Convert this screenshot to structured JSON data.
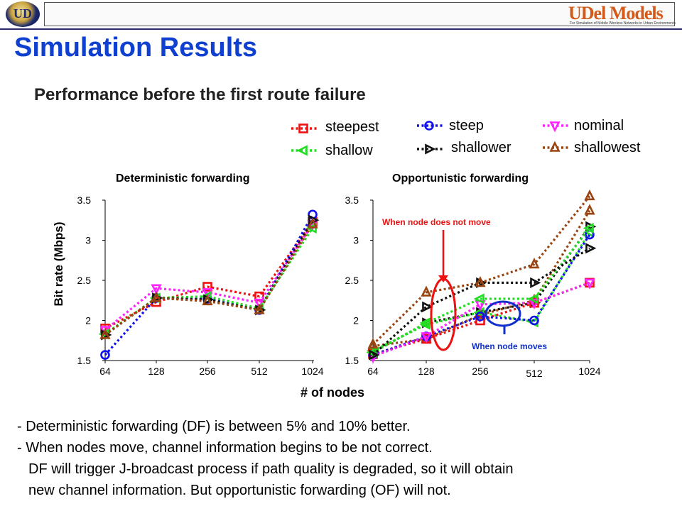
{
  "header": {
    "left_logo_text": "UD",
    "right_logo_text": "UDel Models",
    "right_logo_tagline": "For Simulation of Mobile Wireless Networks in Urban Environments"
  },
  "title": "Simulation Results",
  "subtitle": "Performance before the first route failure",
  "legend": [
    {
      "label": "steepest",
      "color": "#ee1111",
      "marker": "square"
    },
    {
      "label": "steep",
      "color": "#1010ee",
      "marker": "circle"
    },
    {
      "label": "nominal",
      "color": "#ff22ff",
      "marker": "triangle-down"
    },
    {
      "label": "shallow",
      "color": "#22dd22",
      "marker": "triangle-left"
    },
    {
      "label": "shallower",
      "color": "#111111",
      "marker": "triangle-right"
    },
    {
      "label": "shallowest",
      "color": "#994411",
      "marker": "triangle-up"
    }
  ],
  "axis": {
    "ylabel": "Bit rate (Mbps)",
    "xlabel": "# of nodes"
  },
  "chart_data": [
    {
      "type": "line",
      "title": "Deterministic forwarding",
      "categories": [
        "64",
        "128",
        "256",
        "512",
        "1024"
      ],
      "ylim": [
        1.5,
        3.5
      ],
      "yticks": [
        "1.5",
        "2",
        "2.5",
        "3",
        "3.5"
      ],
      "series": [
        {
          "name": "steepest",
          "values": [
            1.9,
            2.23,
            2.42,
            2.3,
            3.23
          ]
        },
        {
          "name": "steep",
          "values": [
            1.57,
            2.28,
            2.27,
            2.13,
            3.32
          ]
        },
        {
          "name": "nominal",
          "values": [
            1.88,
            2.4,
            2.35,
            2.22,
            3.2
          ]
        },
        {
          "name": "shallow",
          "values": [
            1.83,
            2.28,
            2.3,
            2.15,
            3.15
          ]
        },
        {
          "name": "shallower",
          "values": [
            1.82,
            2.28,
            2.26,
            2.13,
            3.25
          ]
        },
        {
          "name": "shallowest",
          "values": [
            1.82,
            2.28,
            2.24,
            2.13,
            3.2
          ]
        }
      ]
    },
    {
      "type": "line",
      "title": "Opportunistic forwarding",
      "categories": [
        "64",
        "128",
        "256",
        "512",
        "1024"
      ],
      "ylim": [
        1.5,
        3.5
      ],
      "yticks": [
        "1.5",
        "2",
        "2.5",
        "3",
        "3.5"
      ],
      "series": [
        {
          "name": "steepest",
          "values": [
            1.58,
            1.77,
            2.0,
            2.22,
            2.47
          ]
        },
        {
          "name": "steep",
          "values": [
            1.57,
            1.8,
            2.05,
            2.0,
            3.07
          ]
        },
        {
          "name": "nominal",
          "values": [
            1.55,
            1.8,
            2.2,
            2.22,
            2.47
          ]
        },
        {
          "name": "shallow",
          "values": [
            1.6,
            1.97,
            2.27,
            2.27,
            3.15
          ]
        },
        {
          "name": "shallower",
          "values": [
            1.57,
            2.17,
            2.47,
            2.47,
            2.9
          ]
        },
        {
          "name": "shallowest",
          "values": [
            1.7,
            2.35,
            2.47,
            2.7,
            3.55
          ]
        }
      ],
      "extra_series": [
        {
          "name": "shallower",
          "values": [
            1.6,
            1.97,
            2.1,
            2.22,
            3.17
          ]
        },
        {
          "name": "shallowest",
          "values": [
            1.68,
            1.77,
            2.07,
            2.25,
            3.37
          ]
        },
        {
          "name": "shallow",
          "values": [
            1.62,
            1.95,
            2.1,
            1.98,
            3.1
          ]
        }
      ],
      "annotations": [
        {
          "text": "When node does not move",
          "color": "#ee1111"
        },
        {
          "text": "When node moves",
          "color": "#1030cc"
        }
      ]
    }
  ],
  "bullets": [
    "- Deterministic forwarding (DF) is between 5% and 10% better.",
    "- When nodes move, channel information begins to be not correct.",
    "DF will trigger J-broadcast process if path quality is degraded, so it will obtain",
    "new channel information. But opportunistic forwarding (OF) will not."
  ]
}
